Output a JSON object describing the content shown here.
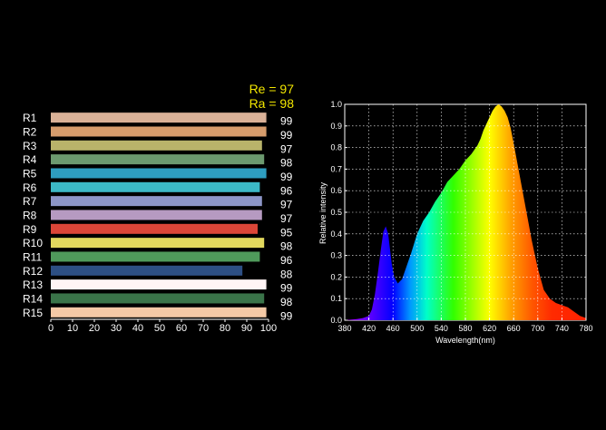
{
  "colors": {
    "background": "#000000",
    "label_text": "#ffffff",
    "summary_text": "#f2e600"
  },
  "chart_data": [
    {
      "type": "bar",
      "orientation": "horizontal",
      "summary": [
        "Re = 97",
        "Ra = 98"
      ],
      "categories": [
        "R1",
        "R2",
        "R3",
        "R4",
        "R5",
        "R6",
        "R7",
        "R8",
        "R9",
        "R10",
        "R11",
        "R12",
        "R13",
        "R14",
        "R15"
      ],
      "values": [
        99,
        99,
        97,
        98,
        99,
        96,
        97,
        97,
        95,
        98,
        96,
        88,
        99,
        98,
        99
      ],
      "bar_colors": [
        "#d9b197",
        "#d69c6c",
        "#b9b36a",
        "#6c9a6f",
        "#2e9ec0",
        "#3cb9c6",
        "#8d96c8",
        "#b69ac1",
        "#dc4638",
        "#e2d85e",
        "#4f9a5b",
        "#2d4f84",
        "#fff4f5",
        "#3a7449",
        "#f4c9a6"
      ],
      "xlim": [
        0,
        100
      ],
      "xticks": [
        0,
        10,
        20,
        30,
        40,
        50,
        60,
        70,
        80,
        90,
        100
      ],
      "grid": false
    },
    {
      "type": "area",
      "xlabel": "Wavelength(nm)",
      "ylabel": "Relative intensity",
      "xlim": [
        380,
        780
      ],
      "ylim": [
        0,
        1.0
      ],
      "xticks": [
        380,
        420,
        460,
        500,
        540,
        580,
        620,
        660,
        700,
        740,
        780
      ],
      "yticks": [
        0.0,
        0.1,
        0.2,
        0.3,
        0.4,
        0.5,
        0.6,
        0.7,
        0.8,
        0.9,
        1.0
      ],
      "grid": true,
      "fill": "visible-spectrum gradient by wavelength",
      "x": [
        380,
        400,
        410,
        420,
        425,
        430,
        435,
        440,
        444,
        448,
        452,
        455,
        458,
        462,
        468,
        475,
        480,
        490,
        500,
        510,
        520,
        530,
        540,
        550,
        560,
        570,
        580,
        590,
        600,
        605,
        610,
        615,
        620,
        625,
        630,
        635,
        640,
        645,
        650,
        655,
        660,
        670,
        680,
        690,
        700,
        710,
        720,
        730,
        740,
        750,
        760,
        770,
        780
      ],
      "y": [
        0.0,
        0.005,
        0.01,
        0.02,
        0.05,
        0.12,
        0.22,
        0.33,
        0.41,
        0.435,
        0.4,
        0.33,
        0.26,
        0.2,
        0.17,
        0.19,
        0.23,
        0.31,
        0.4,
        0.46,
        0.5,
        0.55,
        0.59,
        0.64,
        0.67,
        0.7,
        0.74,
        0.77,
        0.81,
        0.84,
        0.88,
        0.91,
        0.94,
        0.97,
        0.99,
        1.0,
        0.99,
        0.97,
        0.94,
        0.89,
        0.82,
        0.67,
        0.52,
        0.37,
        0.24,
        0.14,
        0.1,
        0.08,
        0.07,
        0.06,
        0.04,
        0.02,
        0.01
      ]
    }
  ]
}
